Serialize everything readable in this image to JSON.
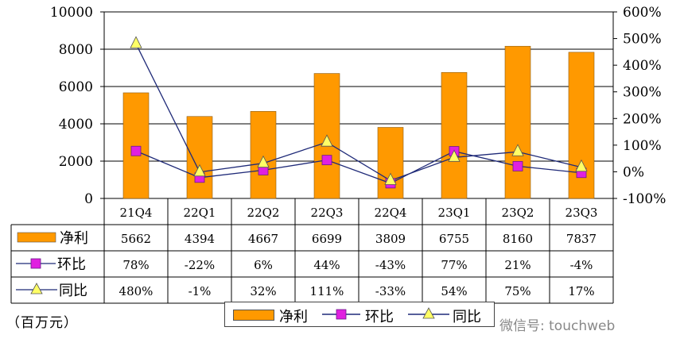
{
  "chart_data": {
    "type": "bar",
    "categories": [
      "21Q4",
      "22Q1",
      "22Q2",
      "22Q3",
      "22Q4",
      "23Q1",
      "23Q2",
      "23Q3"
    ],
    "ylim": [
      0,
      10000
    ],
    "y2lim": [
      -100,
      600
    ],
    "y_ticks": [
      "0",
      "2000",
      "4000",
      "6000",
      "8000",
      "10000"
    ],
    "y2_ticks": [
      "-100%",
      "0%",
      "100%",
      "200%",
      "300%",
      "400%",
      "500%",
      "600%"
    ],
    "series": [
      {
        "name": "净利",
        "type": "bar",
        "axis": "left",
        "color": "#FF9900",
        "values": [
          5662,
          4394,
          4667,
          6699,
          3809,
          6755,
          8160,
          7837
        ],
        "labels": [
          "5662",
          "4394",
          "4667",
          "6699",
          "3809",
          "6755",
          "8160",
          "7837"
        ]
      },
      {
        "name": "环比",
        "type": "line",
        "axis": "right",
        "color": "#1F2A78",
        "marker": "square",
        "marker_color": "#E020E0",
        "values": [
          78,
          -22,
          6,
          44,
          -43,
          77,
          21,
          -4
        ],
        "labels": [
          "78%",
          "-22%",
          "6%",
          "44%",
          "-43%",
          "77%",
          "21%",
          "-4%"
        ]
      },
      {
        "name": "同比",
        "type": "line",
        "axis": "right",
        "color": "#1F2A78",
        "marker": "triangle",
        "marker_color": "#FFFF66",
        "values": [
          480,
          -1,
          32,
          111,
          -33,
          54,
          75,
          17
        ],
        "labels": [
          "480%",
          "-1%",
          "32%",
          "111%",
          "-33%",
          "54%",
          "75%",
          "17%"
        ]
      }
    ],
    "grid": true
  },
  "unit_label": "（百万元）",
  "legend": {
    "items": [
      "净利",
      "环比",
      "同比"
    ]
  },
  "watermark": "微信号: touchweb"
}
